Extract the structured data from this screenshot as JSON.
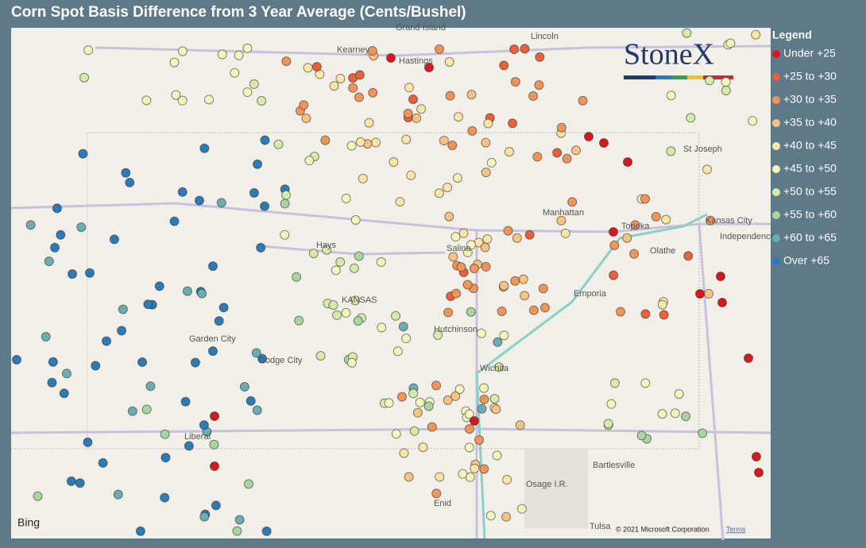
{
  "title": "Corn Spot Basis Difference from 3 Year Average (Cents/Bushel)",
  "legend": {
    "title": "Legend",
    "items": [
      {
        "label": "Under +25",
        "color": "#d7191c"
      },
      {
        "label": "+25 to +30",
        "color": "#e8603c"
      },
      {
        "label": "+30 to +35",
        "color": "#f0955a"
      },
      {
        "label": "+35 to +40",
        "color": "#f7c383"
      },
      {
        "label": "+40 to +45",
        "color": "#fbe6a6"
      },
      {
        "label": "+45 to +50",
        "color": "#f3f7bc"
      },
      {
        "label": "+50 to +55",
        "color": "#d4ebaa"
      },
      {
        "label": "+55 to +60",
        "color": "#a8d5a2"
      },
      {
        "label": "+60 to +65",
        "color": "#6aaeb0"
      },
      {
        "label": "Over +65",
        "color": "#2c7bb6"
      }
    ]
  },
  "logo": "StoneX",
  "map_labels": [
    "Grand Island",
    "Kearney",
    "Hastings",
    "Lincoln",
    "St Joseph",
    "Manhattan",
    "Topeka",
    "Kansas City",
    "Independence",
    "Olathe",
    "Hays",
    "Salina",
    "KANSAS",
    "Emporia",
    "Hutchinson",
    "Wichita",
    "Garden City",
    "Dodge City",
    "Liberal",
    "Bartlesville",
    "Osage I.R.",
    "Enid",
    "Tulsa"
  ],
  "attribution": {
    "brand": "Bing",
    "copyright": "© 2021 Microsoft Corporation",
    "terms": "Terms"
  }
}
